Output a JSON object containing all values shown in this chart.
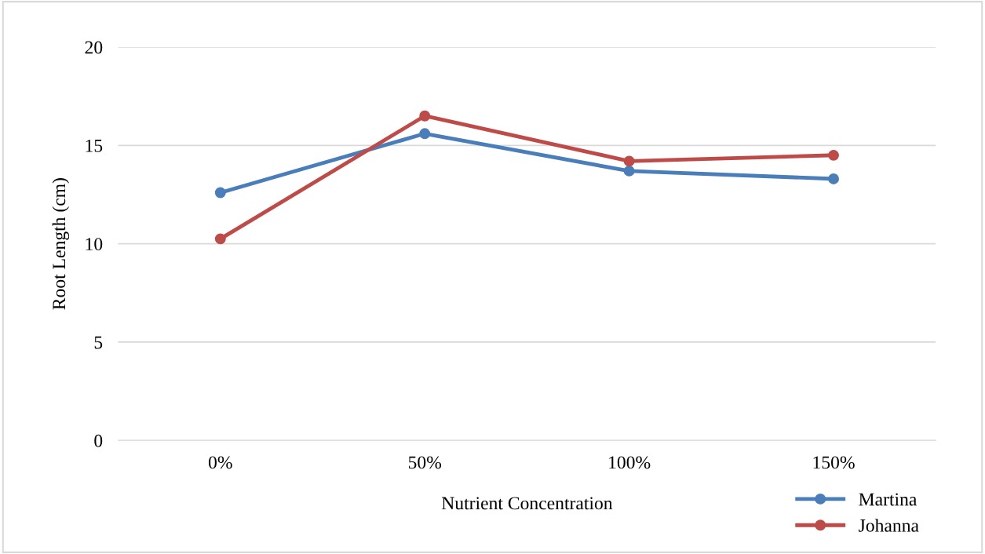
{
  "chart_data": {
    "type": "line",
    "xlabel": "Nutrient Concentration",
    "ylabel": "Root Length (cm)",
    "categories": [
      "0%",
      "50%",
      "100%",
      "150%"
    ],
    "series": [
      {
        "name": "Martina",
        "color": "#4a7ebb",
        "values": [
          12.6,
          15.6,
          13.7,
          13.3
        ]
      },
      {
        "name": "Johanna",
        "color": "#be4b48",
        "values": [
          10.25,
          16.5,
          14.2,
          14.5
        ]
      }
    ],
    "ylim": [
      0,
      20
    ],
    "yticks": [
      0,
      5,
      10,
      15,
      20
    ],
    "grid": "y",
    "legend": "bottom right",
    "marker": "circle",
    "line_style": "solid"
  }
}
